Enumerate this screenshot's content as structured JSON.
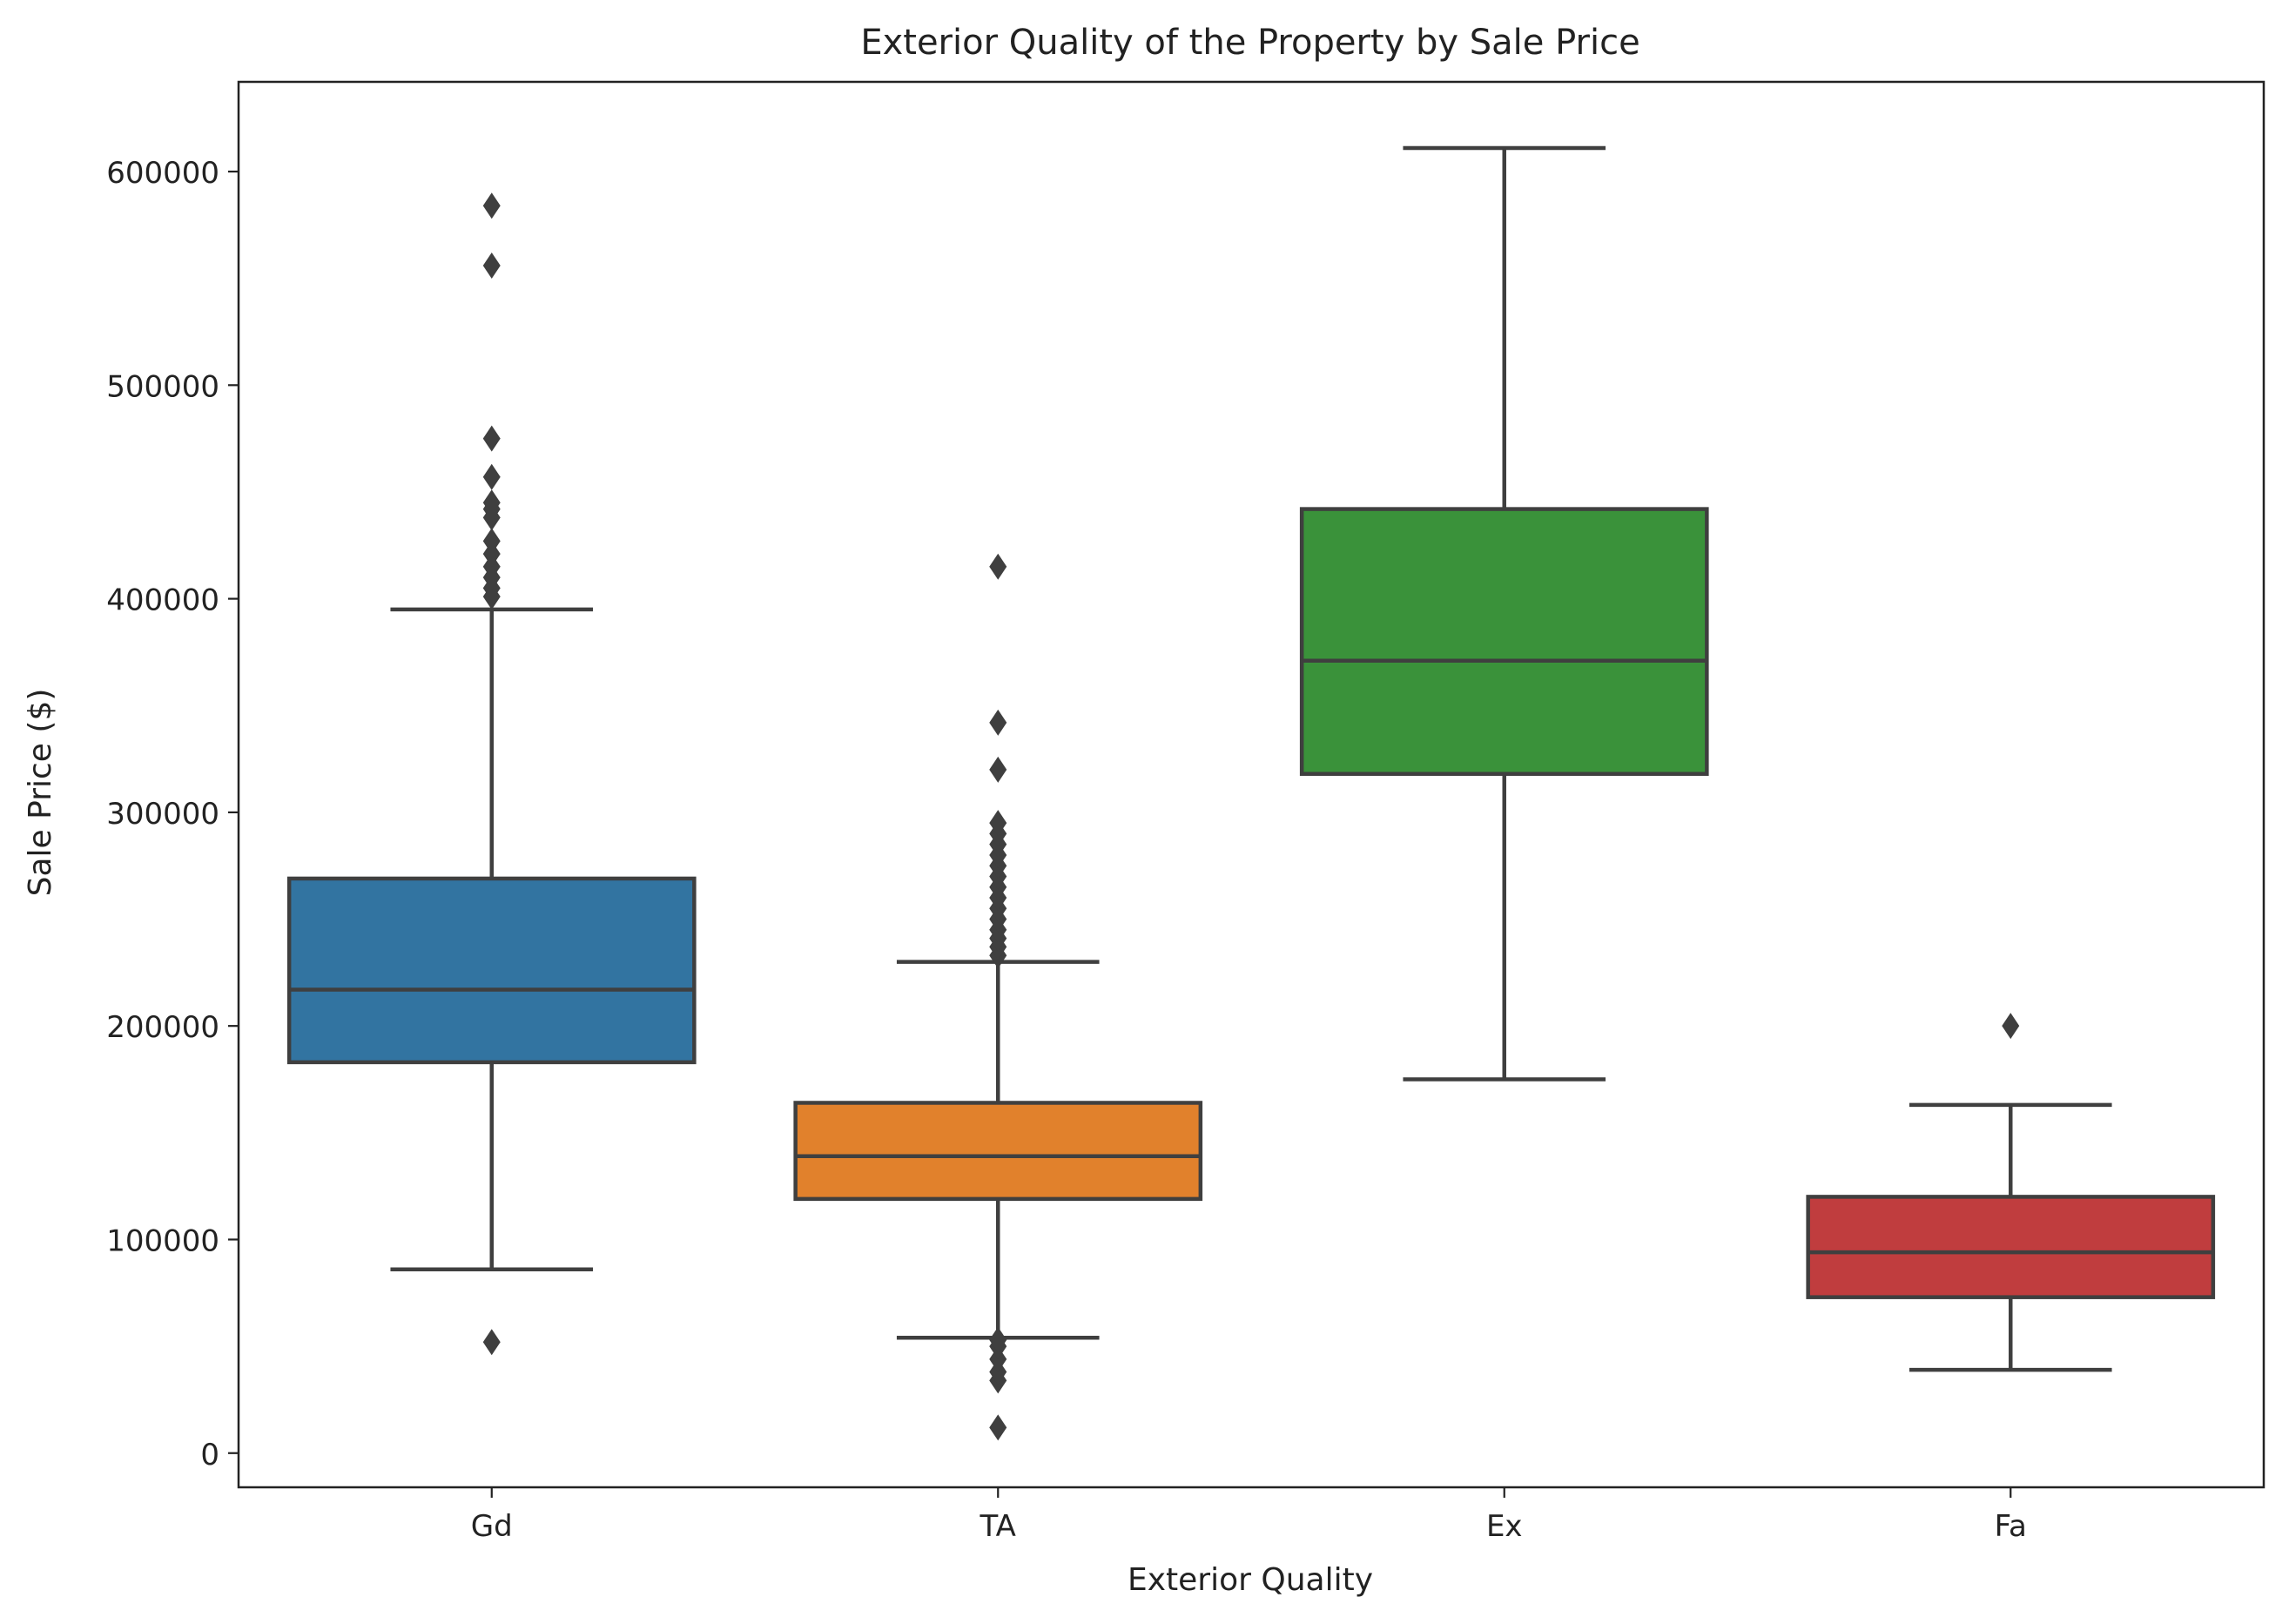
{
  "chart_data": {
    "type": "boxplot",
    "title": "Exterior Quality of the Property by Sale Price",
    "xlabel": "Exterior Quality",
    "ylabel": "Sale Price ($)",
    "ylim": [
      -16000,
      642000
    ],
    "yticks": [
      0,
      100000,
      200000,
      300000,
      400000,
      500000,
      600000
    ],
    "grid": false,
    "categories": [
      "Gd",
      "TA",
      "Ex",
      "Fa"
    ],
    "boxes": [
      {
        "category": "Gd",
        "color": "#3274a1",
        "whisker_low": 86000,
        "q1": 183000,
        "median": 217000,
        "q3": 269000,
        "whisker_high": 395000,
        "outliers": [
          52000,
          401000,
          405000,
          410000,
          415000,
          421000,
          427000,
          438000,
          442000,
          445000,
          457000,
          475000,
          556000,
          584000
        ]
      },
      {
        "category": "TA",
        "color": "#e1812c",
        "whisker_low": 54000,
        "q1": 119000,
        "median": 139000,
        "q3": 164000,
        "whisker_high": 230000,
        "outliers": [
          12000,
          34000,
          38000,
          44000,
          50000,
          53000,
          233000,
          237000,
          241000,
          245000,
          250000,
          255000,
          260000,
          265000,
          270000,
          275000,
          280000,
          285000,
          290000,
          295000,
          320000,
          342000,
          415000
        ]
      },
      {
        "category": "Ex",
        "color": "#3a923a",
        "whisker_low": 175000,
        "q1": 318000,
        "median": 371000,
        "q3": 442000,
        "whisker_high": 611000,
        "outliers": []
      },
      {
        "category": "Fa",
        "color": "#c03d3e",
        "whisker_low": 39000,
        "q1": 73000,
        "median": 94000,
        "q3": 120000,
        "whisker_high": 163000,
        "outliers": [
          200000
        ]
      }
    ]
  }
}
